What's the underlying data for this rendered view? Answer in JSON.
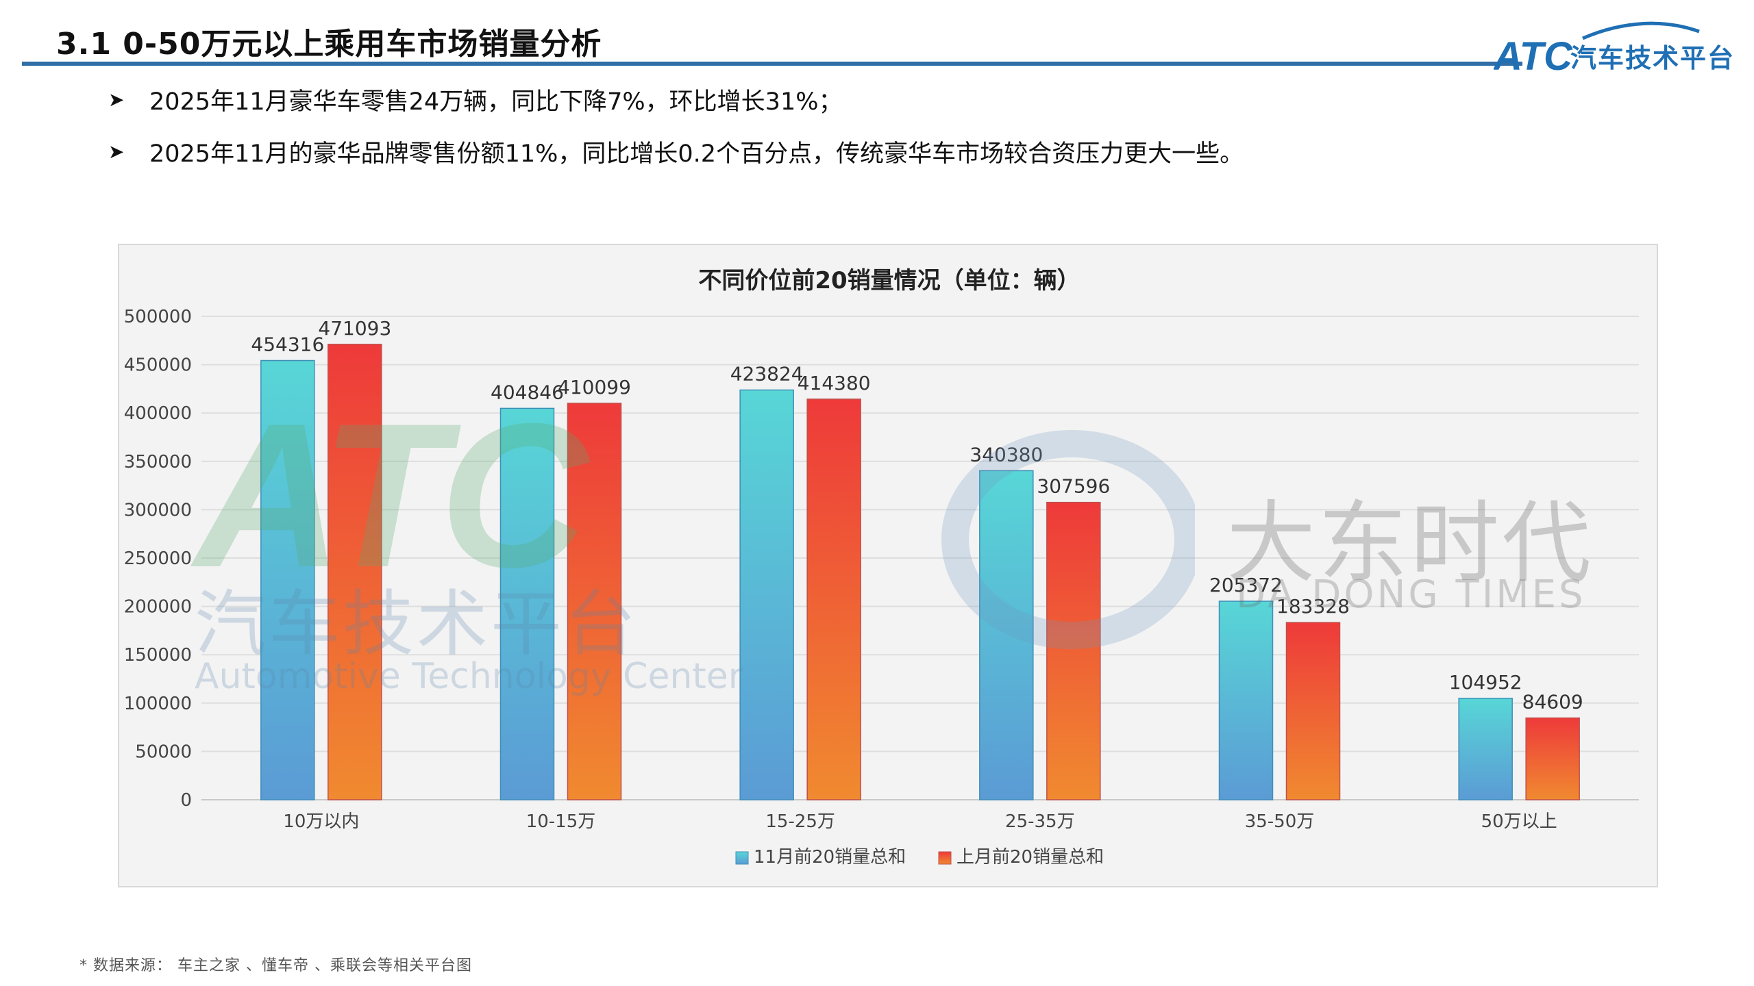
{
  "header": {
    "title": "3.1 0-50万元以上乘用车市场销量分析",
    "logo_text": "ATC",
    "logo_subtitle": "汽车技术平台"
  },
  "bullets": [
    "2025年11月豪华车零售24万辆，同比下降7%，环比增长31%；",
    "2025年11月的豪华品牌零售份额11%，同比增长0.2个百分点，传统豪华车市场较合资压力更大一些。"
  ],
  "watermarks": {
    "atc_logo": "ATC",
    "atc_cn": "汽车技术平台",
    "atc_en": "Automotive Technology Center",
    "dadong_cn": "大东时代",
    "dadong_en": "DA DONG TIMES"
  },
  "colors": {
    "title_rule": "#2f6ea6",
    "series1_top": "#58d6d6",
    "series1_bottom": "#5b9bd5",
    "series2_top": "#ee3a3a",
    "series2_bottom": "#f08a30"
  },
  "chart_data": {
    "type": "bar",
    "title": "不同价位前20销量情况（单位：辆）",
    "categories": [
      "10万以内",
      "10-15万",
      "15-25万",
      "25-35万",
      "35-50万",
      "50万以上"
    ],
    "series": [
      {
        "name": "11月前20销量总和",
        "values": [
          454316,
          404846,
          423824,
          340380,
          205372,
          104952
        ]
      },
      {
        "name": "上月前20销量总和",
        "values": [
          471093,
          410099,
          414380,
          307596,
          183328,
          84609
        ]
      }
    ],
    "ylim": [
      0,
      500000
    ],
    "yticks": [
      0,
      50000,
      100000,
      150000,
      200000,
      250000,
      300000,
      350000,
      400000,
      450000,
      500000
    ],
    "grid": true,
    "legend_position": "bottom",
    "data_labels": true
  },
  "footer": {
    "source": "* 数据来源： 车主之家 、懂车帝 、乘联会等相关平台图"
  }
}
